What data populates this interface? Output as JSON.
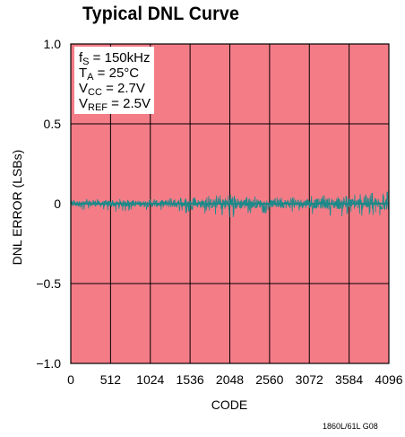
{
  "chart_data": {
    "type": "line",
    "title": "Typical DNL Curve",
    "xlabel": "CODE",
    "ylabel": "DNL ERROR (LSBs)",
    "xlim": [
      0,
      4096
    ],
    "ylim": [
      -1.0,
      1.0
    ],
    "x_ticks": [
      0,
      512,
      1024,
      1536,
      2048,
      2560,
      3072,
      3584,
      4096
    ],
    "x_tick_labels": [
      "0",
      "512",
      "1024",
      "1536",
      "2048",
      "2560",
      "3072",
      "3584",
      "4096"
    ],
    "y_ticks": [
      1.0,
      0.5,
      0,
      -0.5,
      -1.0
    ],
    "y_tick_labels": [
      "1.0",
      "0.5",
      "0",
      "−0.5",
      "−1.0"
    ],
    "grid": true,
    "plot_background": "#f47c87",
    "trace_color": "#1a8a8a",
    "series": [
      {
        "x": [
          0,
          256,
          512,
          768,
          1024,
          1280,
          1536,
          1792,
          2048,
          2304,
          2560,
          2816,
          3072,
          3328,
          3584,
          3840,
          4096
        ],
        "y_max": [
          0.03,
          0.03,
          0.03,
          0.03,
          0.03,
          0.04,
          0.04,
          0.05,
          0.07,
          0.05,
          0.04,
          0.05,
          0.05,
          0.06,
          0.06,
          0.07,
          0.08
        ],
        "y_min": [
          -0.05,
          -0.04,
          -0.05,
          -0.05,
          -0.05,
          -0.06,
          -0.06,
          -0.07,
          -0.09,
          -0.07,
          -0.06,
          -0.07,
          -0.07,
          -0.08,
          -0.08,
          -0.08,
          -0.09
        ]
      }
    ]
  },
  "conditions": {
    "line1": {
      "main": "f",
      "sub": "S",
      "rest": " = 150kHz"
    },
    "line2": {
      "main": "T",
      "sub": "A",
      "rest": " = 25°C"
    },
    "line3": {
      "main": "V",
      "sub": "CC",
      "rest": " = 2.7V"
    },
    "line4": {
      "main": "V",
      "sub": "REF",
      "rest": " = 2.5V"
    }
  },
  "footnote": "1860L/61L G08"
}
